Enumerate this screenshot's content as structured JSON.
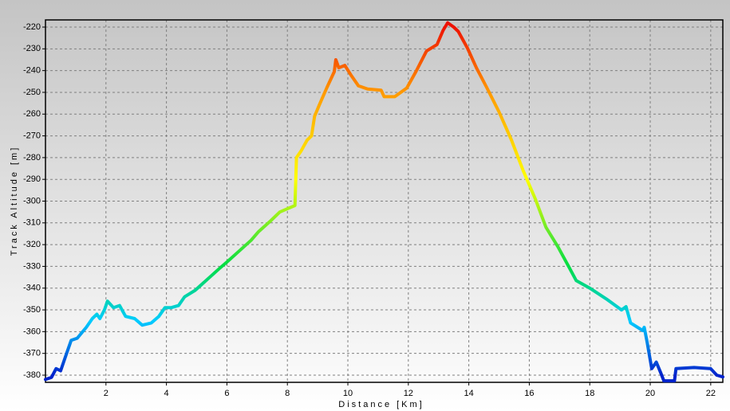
{
  "chart_data": {
    "type": "line",
    "x_label": "Distance [Km]",
    "y_label": "Track Altitude [m]",
    "x": [
      0,
      0.2,
      0.35,
      0.5,
      0.65,
      0.85,
      1.05,
      1.35,
      1.55,
      1.7,
      1.8,
      1.95,
      2.05,
      2.25,
      2.45,
      2.65,
      2.95,
      3.2,
      3.5,
      3.75,
      3.95,
      4.15,
      4.4,
      4.6,
      4.95,
      5.35,
      5.75,
      6.0,
      6.4,
      6.8,
      7.05,
      7.45,
      7.75,
      8.0,
      8.25,
      8.3,
      8.45,
      8.65,
      8.8,
      8.9,
      9.05,
      9.3,
      9.55,
      9.6,
      9.7,
      9.9,
      10.1,
      10.35,
      10.65,
      11.1,
      11.2,
      11.55,
      11.95,
      12.25,
      12.6,
      12.95,
      13.15,
      13.3,
      13.5,
      13.65,
      13.95,
      14.25,
      14.6,
      15.0,
      15.4,
      15.8,
      16.2,
      16.55,
      16.95,
      17.3,
      17.55,
      18.0,
      18.55,
      19.05,
      19.2,
      19.35,
      19.75,
      19.8,
      19.9,
      20.05,
      20.2,
      20.35,
      20.45,
      20.8,
      20.85,
      21.45,
      22.0,
      22.2,
      22.4
    ],
    "series": [
      {
        "name": "Track Altitude",
        "values": [
          -382,
          -381,
          -377,
          -378,
          -372,
          -364,
          -363,
          -358,
          -354,
          -352,
          -354,
          -350,
          -346,
          -349,
          -348,
          -353,
          -354,
          -357,
          -356,
          -353,
          -349,
          -349,
          -348,
          -344,
          -341,
          -336,
          -331,
          -328,
          -323,
          -318,
          -314,
          -309,
          -305,
          -303.5,
          -302,
          -280,
          -277,
          -272,
          -270,
          -261,
          -256,
          -248,
          -240.5,
          -235,
          -238.7,
          -237.6,
          -242,
          -247,
          -248.5,
          -249,
          -252,
          -252,
          -248,
          -240.5,
          -231,
          -228,
          -221.5,
          -218,
          -220,
          -222,
          -229.5,
          -238.7,
          -248,
          -259,
          -271.6,
          -286,
          -299,
          -312,
          -321,
          -330,
          -336.5,
          -340,
          -345,
          -350,
          -348.5,
          -356,
          -359.5,
          -358,
          -365,
          -377,
          -374,
          -379,
          -382.6,
          -382.6,
          -377,
          -376.5,
          -377,
          -380,
          -380.8
        ]
      }
    ],
    "colormap": [
      {
        "value": -380,
        "color": "#0022cc"
      },
      {
        "value": -355,
        "color": "#00ccff"
      },
      {
        "value": -330,
        "color": "#00dd44"
      },
      {
        "value": -290,
        "color": "#ffff00"
      },
      {
        "value": -250,
        "color": "#ff9900"
      },
      {
        "value": -220,
        "color": "#ee1100"
      }
    ],
    "xlim": [
      0,
      22.4
    ],
    "ylim": [
      -383.3,
      -216.7
    ],
    "xticks": [
      2,
      4,
      6,
      8,
      10,
      12,
      14,
      16,
      18,
      20,
      22
    ],
    "yticks": [
      -220,
      -230,
      -240,
      -250,
      -260,
      -270,
      -280,
      -290,
      -300,
      -310,
      -320,
      -330,
      -340,
      -350,
      -360,
      -370,
      -380
    ],
    "grid": true
  }
}
